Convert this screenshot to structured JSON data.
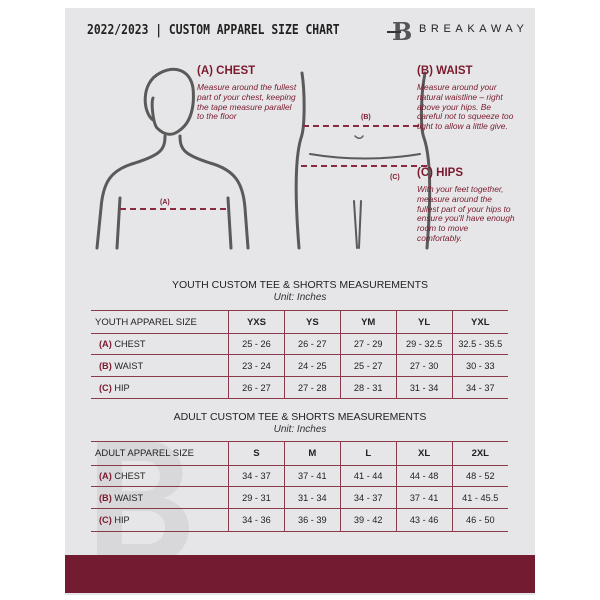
{
  "header": {
    "title": "2022/2023  |  CUSTOM APPAREL SIZE CHART",
    "brand": "BREAKAWAY",
    "logo_letter": "B"
  },
  "measures": {
    "chest": {
      "heading": "(A) CHEST",
      "text": "Measure around the fullest part of your chest, keeping the tape measure parallel to the floor",
      "marker": "(A)"
    },
    "waist": {
      "heading": "(B) WAIST",
      "text": "Measure around your natural waistline – right above your hips. Be careful not to squeeze too tight to allow a little give.",
      "marker": "(B)"
    },
    "hips": {
      "heading": "(C) HIPS",
      "text": "With your feet together, measure around the fullest part of your hips to ensure you'll have enough room to move comfortably.",
      "marker": "(C)"
    }
  },
  "colors": {
    "accent": "#721b31",
    "background": "#e6e6e8"
  },
  "youth": {
    "title": "YOUTH CUSTOM TEE & SHORTS MEASUREMENTS",
    "unit": "Unit: Inches",
    "header": "YOUTH APPAREL SIZE",
    "sizes": [
      "YXS",
      "YS",
      "YM",
      "YL",
      "YXL"
    ],
    "rows": [
      {
        "letter": "(A)",
        "name": "CHEST",
        "values": [
          "25 - 26",
          "26 - 27",
          "27 - 29",
          "29 - 32.5",
          "32.5 - 35.5"
        ]
      },
      {
        "letter": "(B)",
        "name": "WAIST",
        "values": [
          "23 - 24",
          "24 - 25",
          "25 - 27",
          "27 - 30",
          "30 - 33"
        ]
      },
      {
        "letter": "(C)",
        "name": "HIP",
        "values": [
          "26 - 27",
          "27 - 28",
          "28 - 31",
          "31 - 34",
          "34 - 37"
        ]
      }
    ]
  },
  "adult": {
    "title": "ADULT CUSTOM TEE & SHORTS MEASUREMENTS",
    "unit": "Unit: Inches",
    "header": "ADULT APPAREL SIZE",
    "sizes": [
      "S",
      "M",
      "L",
      "XL",
      "2XL"
    ],
    "rows": [
      {
        "letter": "(A)",
        "name": "CHEST",
        "values": [
          "34 - 37",
          "37 - 41",
          "41 - 44",
          "44 - 48",
          "48 - 52"
        ]
      },
      {
        "letter": "(B)",
        "name": "WAIST",
        "values": [
          "29 - 31",
          "31 - 34",
          "34 - 37",
          "37 - 41",
          "41 - 45.5"
        ]
      },
      {
        "letter": "(C)",
        "name": "HIP",
        "values": [
          "34 - 36",
          "36 - 39",
          "39 - 42",
          "43 - 46",
          "46 - 50"
        ]
      }
    ]
  }
}
